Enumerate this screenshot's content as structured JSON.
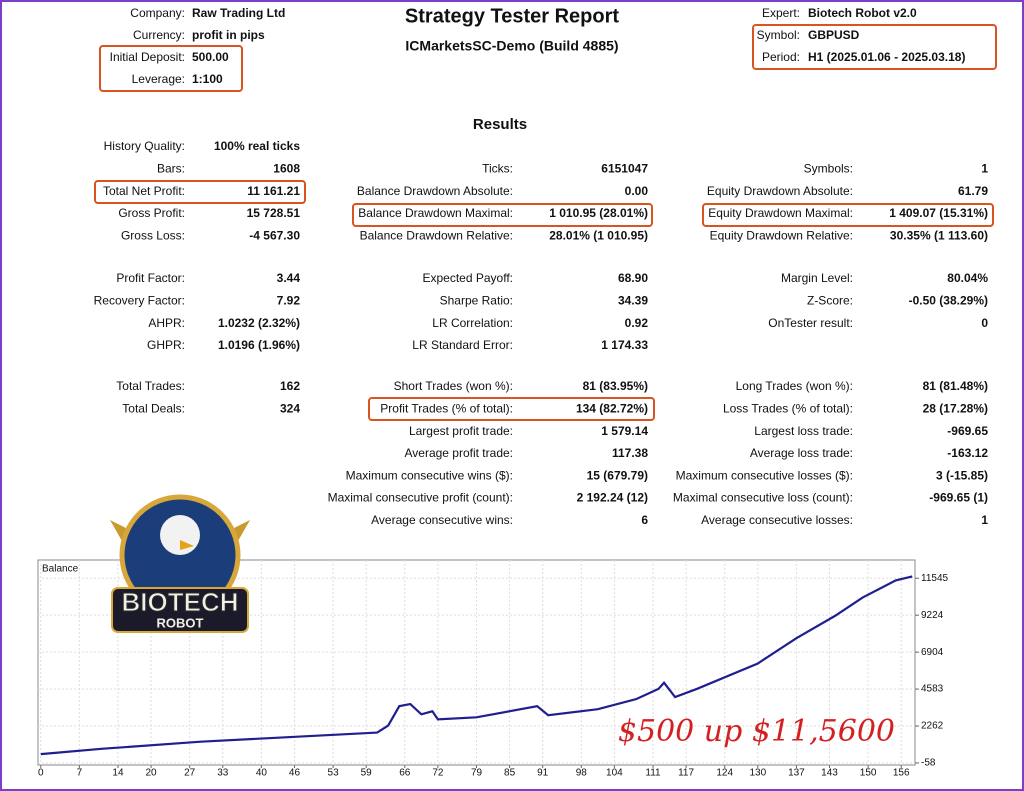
{
  "header": {
    "title": "Strategy Tester Report",
    "subtitle": "ICMarketsSC-Demo (Build 4885)",
    "left": [
      {
        "label": "Company:",
        "value": "Raw Trading Ltd"
      },
      {
        "label": "Currency:",
        "value": "profit in pips"
      },
      {
        "label": "Initial Deposit:",
        "value": "500.00"
      },
      {
        "label": "Leverage:",
        "value": "1:100"
      }
    ],
    "right": [
      {
        "label": "Expert:",
        "value": "Biotech Robot v2.0"
      },
      {
        "label": "Symbol:",
        "value": "GBPUSD"
      },
      {
        "label": "Period:",
        "value": "H1 (2025.01.06 - 2025.03.18)"
      }
    ]
  },
  "results": {
    "heading": "Results",
    "sections": [
      {
        "columns": [
          [
            {
              "label": "History Quality:",
              "value": "100% real ticks"
            },
            {
              "label": "Bars:",
              "value": "1608"
            },
            {
              "label": "Total Net Profit:",
              "value": "11 161.21"
            },
            {
              "label": "Gross Profit:",
              "value": "15 728.51"
            },
            {
              "label": "Gross Loss:",
              "value": "-4 567.30"
            }
          ],
          [
            {
              "label": "Ticks:",
              "value": "6151047"
            },
            {
              "label": "Balance Drawdown Absolute:",
              "value": "0.00"
            },
            {
              "label": "Balance Drawdown Maximal:",
              "value": "1 010.95 (28.01%)"
            },
            {
              "label": "Balance Drawdown Relative:",
              "value": "28.01% (1 010.95)"
            }
          ],
          [
            {
              "label": "Symbols:",
              "value": "1"
            },
            {
              "label": "Equity Drawdown Absolute:",
              "value": "61.79"
            },
            {
              "label": "Equity Drawdown Maximal:",
              "value": "1 409.07 (15.31%)"
            },
            {
              "label": "Equity Drawdown Relative:",
              "value": "30.35% (1 113.60)"
            }
          ]
        ]
      },
      {
        "columns": [
          [
            {
              "label": "Profit Factor:",
              "value": "3.44"
            },
            {
              "label": "Recovery Factor:",
              "value": "7.92"
            },
            {
              "label": "AHPR:",
              "value": "1.0232 (2.32%)"
            },
            {
              "label": "GHPR:",
              "value": "1.0196 (1.96%)"
            }
          ],
          [
            {
              "label": "Expected Payoff:",
              "value": "68.90"
            },
            {
              "label": "Sharpe Ratio:",
              "value": "34.39"
            },
            {
              "label": "LR Correlation:",
              "value": "0.92"
            },
            {
              "label": "LR Standard Error:",
              "value": "1 174.33"
            }
          ],
          [
            {
              "label": "Margin Level:",
              "value": "80.04%"
            },
            {
              "label": "Z-Score:",
              "value": "-0.50 (38.29%)"
            },
            {
              "label": "OnTester result:",
              "value": "0"
            }
          ]
        ]
      },
      {
        "columns": [
          [
            {
              "label": "Total Trades:",
              "value": "162"
            },
            {
              "label": "Total Deals:",
              "value": "324"
            }
          ],
          [
            {
              "label": "Short Trades (won %):",
              "value": "81 (83.95%)"
            },
            {
              "label": "Profit Trades (% of total):",
              "value": "134 (82.72%)"
            },
            {
              "label": "Largest profit trade:",
              "value": "1 579.14"
            },
            {
              "label": "Average profit trade:",
              "value": "117.38"
            },
            {
              "label": "Maximum consecutive wins ($):",
              "value": "15 (679.79)"
            },
            {
              "label": "Maximal consecutive profit (count):",
              "value": "2 192.24 (12)"
            },
            {
              "label": "Average consecutive wins:",
              "value": "6"
            }
          ],
          [
            {
              "label": "Long Trades (won %):",
              "value": "81 (81.48%)"
            },
            {
              "label": "Loss Trades (% of total):",
              "value": "28 (17.28%)"
            },
            {
              "label": "Largest loss trade:",
              "value": "-969.65"
            },
            {
              "label": "Average loss trade:",
              "value": "-163.12"
            },
            {
              "label": "Maximum consecutive losses ($):",
              "value": "3 (-15.85)"
            },
            {
              "label": "Maximal consecutive loss (count):",
              "value": "-969.65 (1)"
            },
            {
              "label": "Average consecutive losses:",
              "value": "1"
            }
          ]
        ]
      }
    ]
  },
  "logo": {
    "line1": "BIOTECH",
    "line2": "ROBOT"
  },
  "chart_data": {
    "type": "line",
    "annotation": "$500 up $11,5600",
    "x": [
      0,
      11,
      29,
      47,
      61,
      63,
      65,
      67,
      69,
      71,
      72,
      79,
      90,
      92,
      101,
      108,
      112,
      113,
      115,
      119,
      130,
      137,
      144,
      149,
      155,
      158
    ],
    "series": [
      {
        "name": "Balance",
        "color": "#1f1f8f",
        "values": [
          500,
          830,
          1280,
          1600,
          1850,
          2300,
          3510,
          3640,
          3000,
          3190,
          2680,
          2810,
          3510,
          2940,
          3320,
          3960,
          4600,
          4980,
          4080,
          4600,
          6190,
          7780,
          9180,
          10330,
          11410,
          11661
        ]
      }
    ],
    "xlim": [
      -0.5,
      158.5
    ],
    "ylim": [
      -185,
      12690
    ],
    "xticks": [
      0,
      7,
      14,
      20,
      27,
      33,
      40,
      46,
      53,
      59,
      66,
      72,
      79,
      85,
      91,
      98,
      104,
      111,
      117,
      124,
      130,
      137,
      143,
      150,
      156
    ],
    "yticks": [
      -58,
      2262,
      4583,
      6904,
      9224,
      11545
    ],
    "grid": true
  }
}
